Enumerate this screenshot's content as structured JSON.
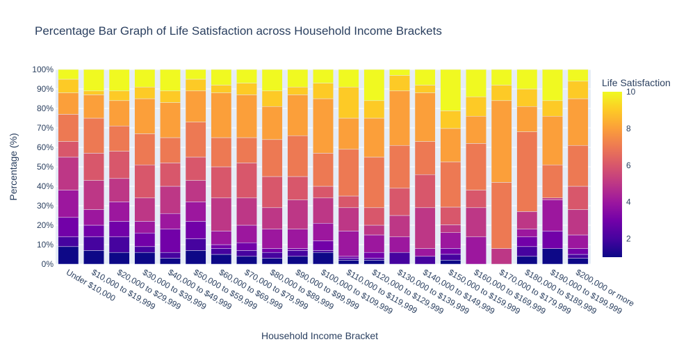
{
  "chart_data": {
    "type": "bar",
    "stacked": "percent",
    "title": "Percentage Bar Graph of Life Satisfaction across Household Income Brackets",
    "xlabel": "Household Income Bracket",
    "ylabel": "Percentage (%)",
    "ylim": [
      0,
      100
    ],
    "y_ticks": [
      "0%",
      "10%",
      "20%",
      "30%",
      "40%",
      "50%",
      "60%",
      "70%",
      "80%",
      "90%",
      "100%"
    ],
    "grid": true,
    "colorbar": {
      "title": "Life Satisfaction",
      "min": 1,
      "max": 10,
      "ticks": [
        "2",
        "4",
        "6",
        "8",
        "10"
      ],
      "tick_values": [
        2,
        4,
        6,
        8,
        10
      ],
      "colorscale": [
        "#0d0887",
        "#46039f",
        "#7201a8",
        "#9c179e",
        "#bd3786",
        "#d8576b",
        "#ed7953",
        "#fb9f3a",
        "#fdca26",
        "#f0f921"
      ]
    },
    "categories": [
      "Under $10,000",
      "$10,000 to $19,999",
      "$20,000 to $29,999",
      "$30,000 to $39,999",
      "$40,000 to $49,999",
      "$50,000 to $59,999",
      "$60,000 to $69,999",
      "$70,000 to $79,999",
      "$80,000 to $89,999",
      "$90,000 to $99,999",
      "$100,000 to $109,999",
      "$110,000 to $119,999",
      "$120,000 to $129,999",
      "$130,000 to $139,999",
      "$140,000 to $149,999",
      "$150,000 to $159,999",
      "$160,000 to $169,999",
      "$170,000 to $179,999",
      "$180,000 to $189,999",
      "$190,000 to $199,999",
      "$200,000 or more"
    ],
    "series": [
      {
        "level": 1,
        "values": [
          9,
          7,
          6,
          6,
          3,
          7,
          5,
          4,
          3,
          4,
          6,
          2,
          2,
          0,
          0,
          2,
          0,
          0,
          4,
          8,
          3
        ]
      },
      {
        "level": 2,
        "values": [
          5,
          7,
          8,
          3,
          3,
          6,
          3,
          3,
          3,
          3,
          1,
          1,
          1,
          6,
          4,
          3,
          0,
          0,
          5,
          0,
          2
        ]
      },
      {
        "level": 3,
        "values": [
          10,
          6,
          8,
          7,
          12,
          9,
          2,
          4,
          2,
          1,
          5,
          1,
          3,
          0,
          0,
          3,
          0,
          0,
          5,
          9,
          3
        ]
      },
      {
        "level": 4,
        "values": [
          14,
          8,
          10,
          6,
          8,
          10,
          7,
          9,
          10,
          10,
          9,
          13,
          9,
          8,
          4,
          8,
          14,
          0,
          4,
          16,
          7
        ]
      },
      {
        "level": 5,
        "values": [
          17,
          15,
          12,
          12,
          14,
          11,
          17,
          14,
          11,
          15,
          13,
          12,
          5,
          11,
          21,
          4,
          15,
          8,
          9,
          1,
          13
        ]
      },
      {
        "level": 6,
        "values": [
          8,
          14,
          14,
          17,
          12,
          12,
          16,
          18,
          16,
          12,
          6,
          6,
          9,
          14,
          17,
          9,
          9,
          0,
          0,
          0,
          12
        ]
      },
      {
        "level": 7,
        "values": [
          14,
          18,
          13,
          16,
          13,
          18,
          15,
          13,
          19,
          21,
          17,
          24,
          26,
          22,
          17,
          23,
          24,
          34,
          41,
          17,
          21
        ]
      },
      {
        "level": 8,
        "values": [
          11,
          12,
          13,
          18,
          18,
          16,
          23,
          22,
          17,
          21,
          28,
          16,
          20,
          28,
          25,
          17,
          14,
          42,
          13,
          25,
          24
        ]
      },
      {
        "level": 9,
        "values": [
          7,
          2,
          5,
          6,
          6,
          6,
          4,
          6,
          8,
          4,
          8,
          16,
          9,
          8,
          4,
          9,
          10,
          8,
          9,
          8,
          9
        ]
      },
      {
        "level": 10,
        "values": [
          5,
          11,
          11,
          9,
          11,
          5,
          8,
          7,
          11,
          9,
          7,
          9,
          16,
          3,
          8,
          21,
          14,
          8,
          10,
          16,
          6
        ]
      }
    ]
  }
}
